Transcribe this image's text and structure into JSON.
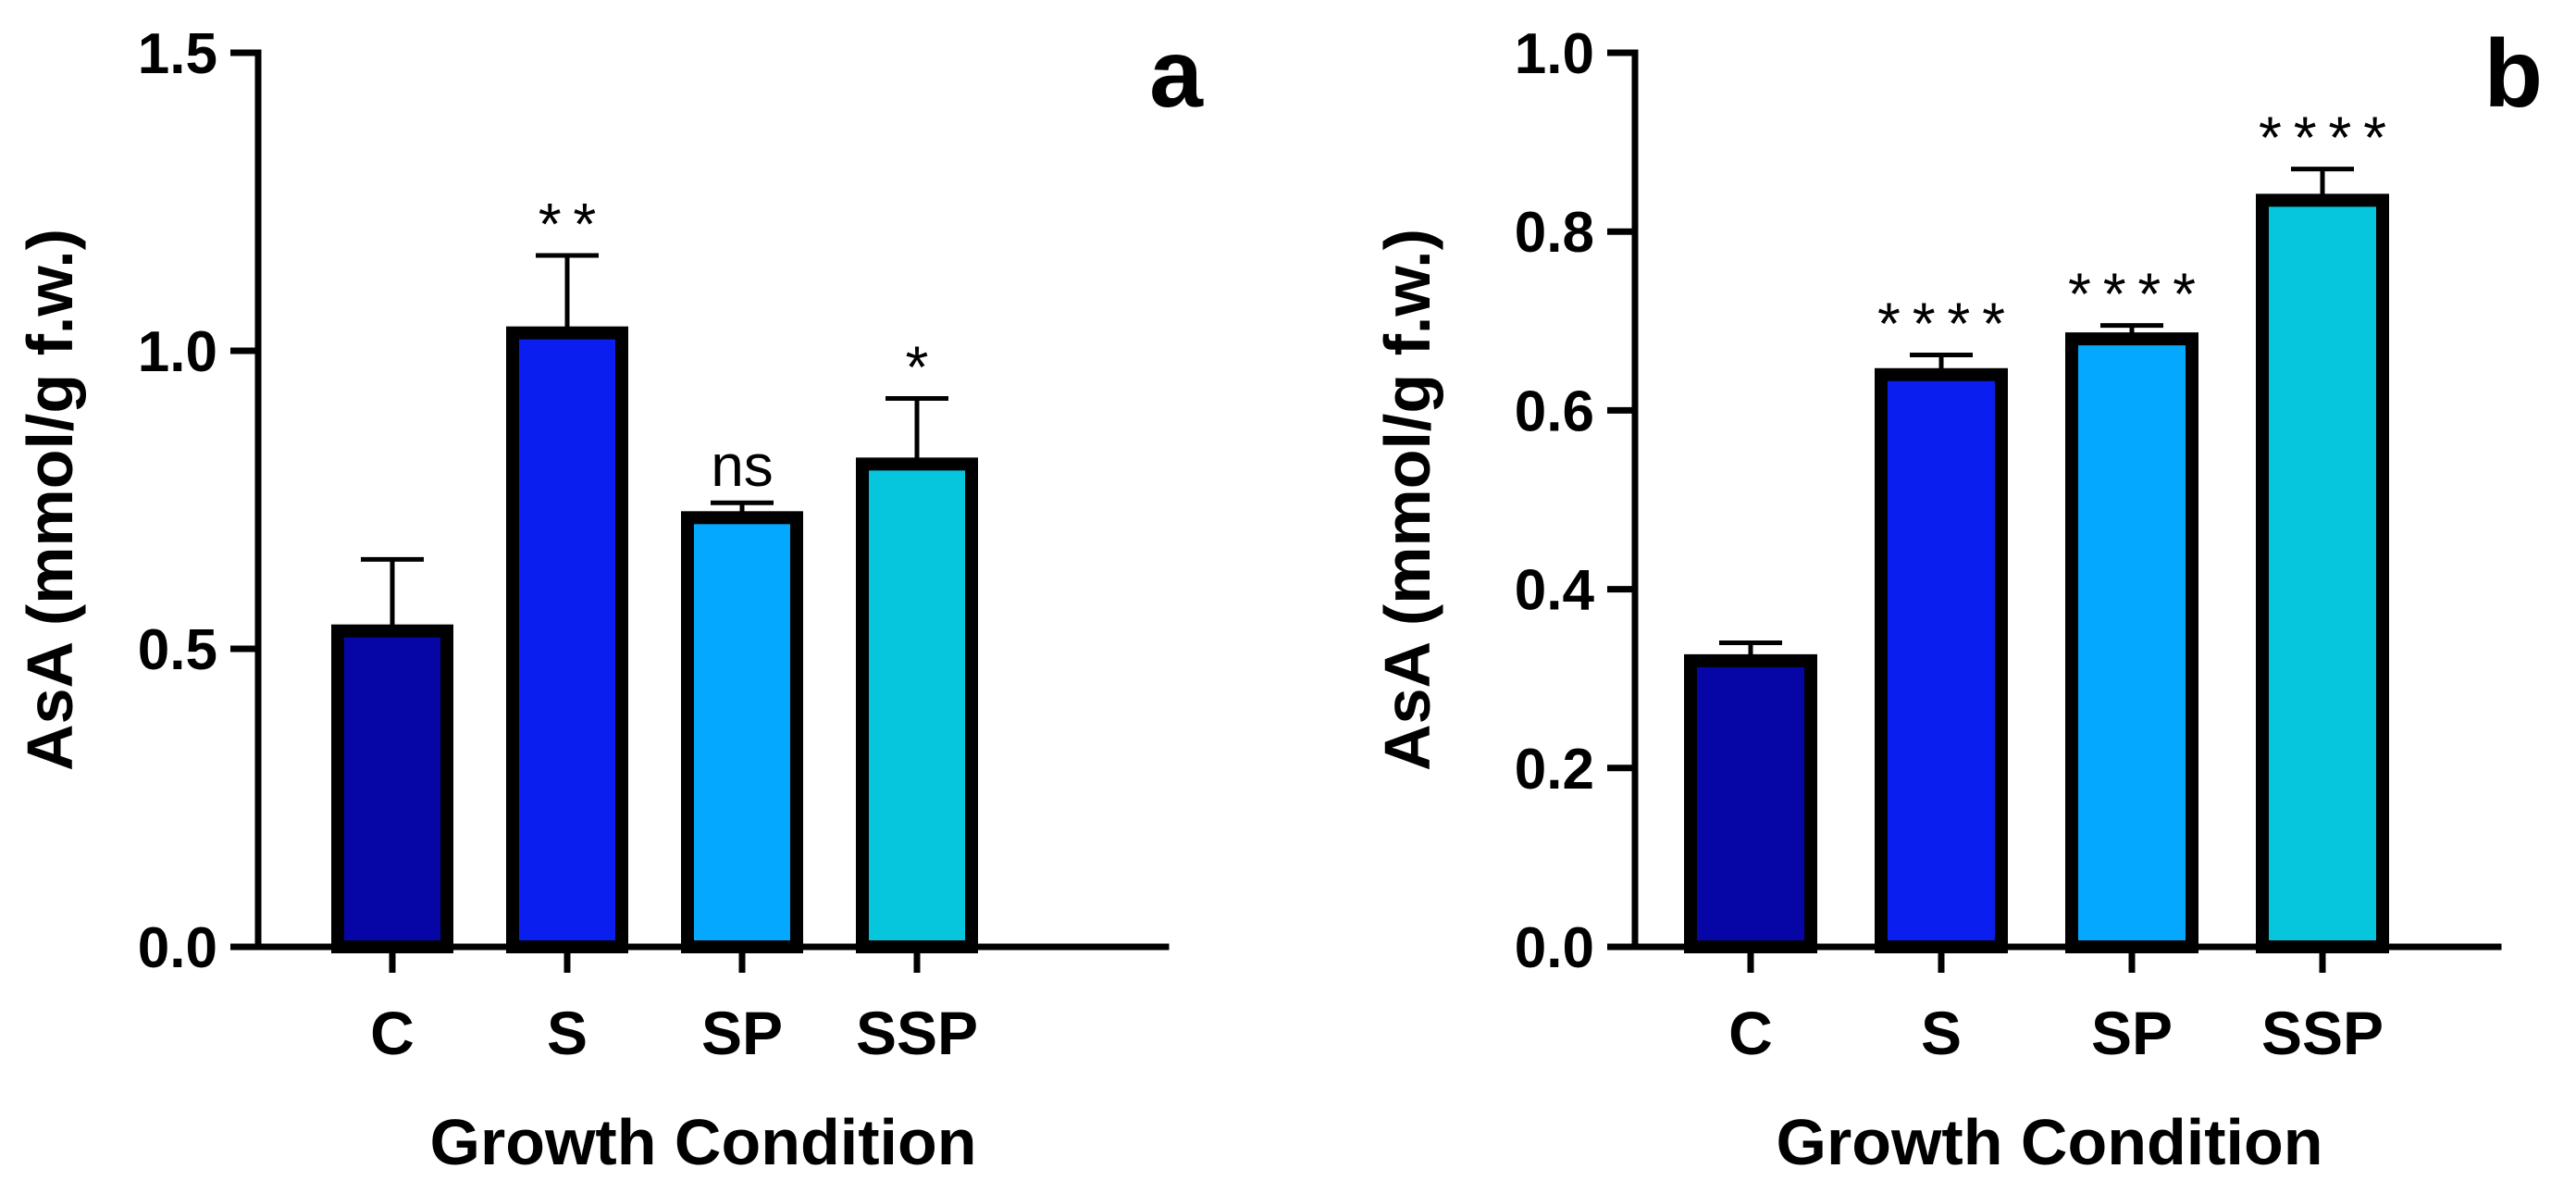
{
  "chart_data": [
    {
      "type": "bar",
      "panel": "a",
      "categories": [
        "C",
        "S",
        "SP",
        "SSP"
      ],
      "values": [
        0.53,
        1.03,
        0.72,
        0.81
      ],
      "errors": [
        0.12,
        0.13,
        0.025,
        0.11
      ],
      "significance": [
        "",
        "**",
        "ns",
        "*"
      ],
      "colors": [
        "#0606A6",
        "#0B1EF0",
        "#05A8FF",
        "#06C6DE"
      ],
      "xlabel": "Growth Condition",
      "ylabel": "AsA (mmol/g f.w.)",
      "ylim": [
        0,
        1.5
      ],
      "yticks": [
        0.0,
        0.5,
        1.0,
        1.5
      ],
      "ytick_labels": [
        "0.0",
        "0.5",
        "1.0",
        "1.5"
      ]
    },
    {
      "type": "bar",
      "panel": "b",
      "categories": [
        "C",
        "S",
        "SP",
        "SSP"
      ],
      "values": [
        0.32,
        0.64,
        0.68,
        0.835
      ],
      "errors": [
        0.02,
        0.022,
        0.015,
        0.035
      ],
      "significance": [
        "",
        "****",
        "****",
        "****"
      ],
      "colors": [
        "#0606A6",
        "#0B1EF0",
        "#05A8FF",
        "#06C6DE"
      ],
      "xlabel": "Growth Condition",
      "ylabel": "AsA (mmol/g f.w.)",
      "ylim": [
        0,
        1.0
      ],
      "yticks": [
        0.0,
        0.2,
        0.4,
        0.6,
        0.8,
        1.0
      ],
      "ytick_labels": [
        "0.0",
        "0.2",
        "0.4",
        "0.6",
        "0.8",
        "1.0"
      ]
    }
  ]
}
